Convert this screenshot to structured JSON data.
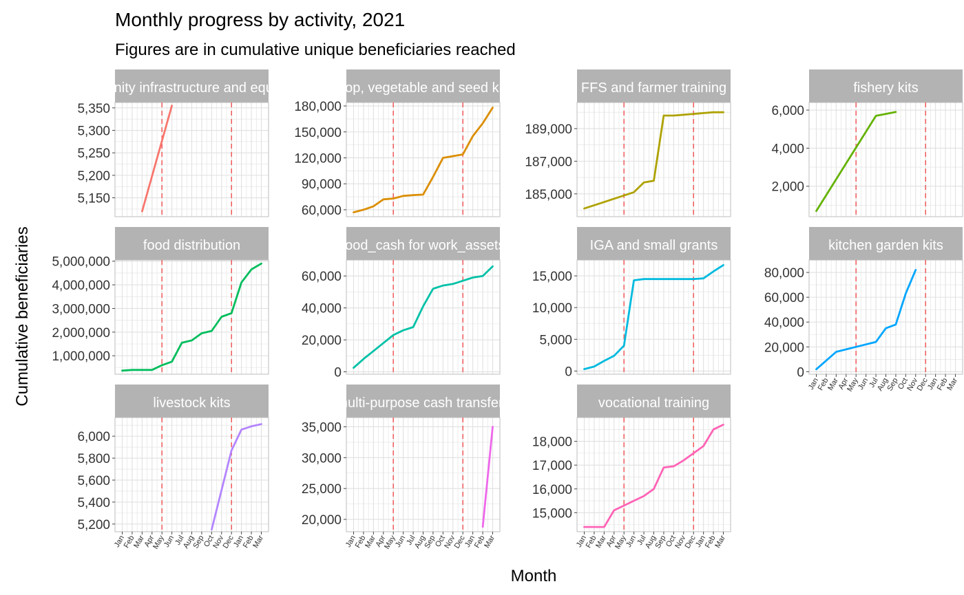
{
  "title": "Monthly progress by activity, 2021",
  "subtitle": "Figures are in cumulative unique beneficiaries reached",
  "xlabel": "Month",
  "ylabel": "Cumulative beneficiaries",
  "colors": {
    "strip_bg": "#b3b3b3",
    "strip_text": "#ffffff",
    "grid": "#e0e0e0",
    "panel_border": "#bdbdbd",
    "vline": "#f06060",
    "axis_text": "#333333"
  },
  "chart_data": {
    "type": "line",
    "x_categories": [
      "Jan",
      "Feb",
      "Mar",
      "Apr",
      "May",
      "Jun",
      "Jul",
      "Aug",
      "Sep",
      "Oct",
      "Nov",
      "Dec",
      "Jan",
      "Feb",
      "Mar"
    ],
    "reference_lines_x": [
      "May",
      "Dec"
    ],
    "grid": true,
    "facets": [
      {
        "label": "community infrastructure and equipment",
        "color": "#F8766D",
        "yticks": [
          5150,
          5200,
          5250,
          5300,
          5350
        ],
        "ylim": [
          5108,
          5362
        ],
        "points": [
          [
            3,
            5120
          ],
          [
            6,
            5355
          ]
        ]
      },
      {
        "label": "crop, vegetable and seed kits",
        "color": "#DB8E00",
        "yticks": [
          60000,
          90000,
          120000,
          150000,
          180000
        ],
        "ylim": [
          52000,
          184000
        ],
        "points": [
          [
            1,
            57000
          ],
          [
            2,
            60000
          ],
          [
            3,
            64000
          ],
          [
            4,
            72000
          ],
          [
            5,
            73000
          ],
          [
            6,
            76000
          ],
          [
            7,
            77000
          ],
          [
            8,
            77500
          ],
          [
            9,
            98000
          ],
          [
            10,
            120000
          ],
          [
            11,
            122000
          ],
          [
            12,
            124000
          ],
          [
            13,
            145000
          ],
          [
            14,
            160000
          ],
          [
            15,
            178000
          ]
        ]
      },
      {
        "label": "FFS and farmer training",
        "color": "#AEA200",
        "yticks": [
          185000,
          187000,
          189000
        ],
        "ylim": [
          183600,
          190600
        ],
        "points": [
          [
            1,
            184100
          ],
          [
            2,
            184300
          ],
          [
            3,
            184500
          ],
          [
            4,
            184700
          ],
          [
            5,
            184900
          ],
          [
            6,
            185100
          ],
          [
            7,
            185700
          ],
          [
            8,
            185800
          ],
          [
            9,
            189800
          ],
          [
            10,
            189800
          ],
          [
            11,
            189850
          ],
          [
            12,
            189900
          ],
          [
            13,
            189950
          ],
          [
            14,
            190000
          ],
          [
            15,
            190000
          ]
        ]
      },
      {
        "label": "fishery kits",
        "color": "#64B200",
        "yticks": [
          2000,
          4000,
          6000
        ],
        "ylim": [
          400,
          6400
        ],
        "points": [
          [
            1,
            700
          ],
          [
            7,
            5700
          ],
          [
            8,
            5800
          ],
          [
            9,
            5900
          ]
        ]
      },
      {
        "label": "food distribution",
        "color": "#00BD5C",
        "yticks": [
          1000000,
          2000000,
          3000000,
          4000000,
          5000000
        ],
        "ylim": [
          220000,
          5050000
        ],
        "points": [
          [
            1,
            370000
          ],
          [
            2,
            400000
          ],
          [
            3,
            400000
          ],
          [
            4,
            400000
          ],
          [
            5,
            600000
          ],
          [
            6,
            750000
          ],
          [
            7,
            1550000
          ],
          [
            8,
            1650000
          ],
          [
            9,
            1950000
          ],
          [
            10,
            2050000
          ],
          [
            11,
            2650000
          ],
          [
            12,
            2800000
          ],
          [
            13,
            4100000
          ],
          [
            14,
            4650000
          ],
          [
            15,
            4900000
          ]
        ]
      },
      {
        "label": "food_cash for work_assets",
        "color": "#00C1A7",
        "yticks": [
          0,
          20000,
          40000,
          60000
        ],
        "ylim": [
          -1500,
          70000
        ],
        "points": [
          [
            1,
            2500
          ],
          [
            2,
            8000
          ],
          [
            3,
            13000
          ],
          [
            4,
            18000
          ],
          [
            5,
            23000
          ],
          [
            6,
            26000
          ],
          [
            7,
            28000
          ],
          [
            8,
            41000
          ],
          [
            9,
            52000
          ],
          [
            10,
            54000
          ],
          [
            11,
            55000
          ],
          [
            12,
            57000
          ],
          [
            13,
            59000
          ],
          [
            14,
            60000
          ],
          [
            15,
            66000
          ]
        ]
      },
      {
        "label": "IGA and small grants",
        "color": "#00BADE",
        "yticks": [
          0,
          5000,
          10000,
          15000
        ],
        "ylim": [
          -500,
          17500
        ],
        "points": [
          [
            1,
            300
          ],
          [
            2,
            700
          ],
          [
            3,
            1600
          ],
          [
            4,
            2400
          ],
          [
            5,
            4000
          ],
          [
            6,
            14300
          ],
          [
            7,
            14500
          ],
          [
            8,
            14500
          ],
          [
            9,
            14500
          ],
          [
            10,
            14500
          ],
          [
            11,
            14500
          ],
          [
            12,
            14500
          ],
          [
            13,
            14600
          ],
          [
            14,
            15700
          ],
          [
            15,
            16700
          ]
        ]
      },
      {
        "label": "kitchen garden kits",
        "color": "#00A6FF",
        "yticks": [
          0,
          20000,
          40000,
          60000,
          80000
        ],
        "ylim": [
          -2000,
          90000
        ],
        "points": [
          [
            1,
            2000
          ],
          [
            2,
            9000
          ],
          [
            3,
            16000
          ],
          [
            4,
            18000
          ],
          [
            5,
            20000
          ],
          [
            6,
            22000
          ],
          [
            7,
            24000
          ],
          [
            8,
            35000
          ],
          [
            9,
            38000
          ],
          [
            10,
            63000
          ],
          [
            11,
            82000
          ]
        ]
      },
      {
        "label": "livestock kits",
        "color": "#B385FF",
        "yticks": [
          5200,
          5400,
          5600,
          5800,
          6000
        ],
        "ylim": [
          5130,
          6170
        ],
        "points": [
          [
            10,
            5150
          ],
          [
            12,
            5870
          ],
          [
            13,
            6060
          ],
          [
            14,
            6090
          ],
          [
            15,
            6110
          ]
        ]
      },
      {
        "label": "multi-purpose cash transfers",
        "color": "#EF67EB",
        "yticks": [
          20000,
          25000,
          30000,
          35000
        ],
        "ylim": [
          18000,
          36500
        ],
        "points": [
          [
            14,
            18800
          ],
          [
            15,
            35000
          ]
        ]
      },
      {
        "label": "vocational training",
        "color": "#FF63B6",
        "yticks": [
          15000,
          16000,
          17000,
          18000
        ],
        "ylim": [
          14200,
          19000
        ],
        "points": [
          [
            1,
            14400
          ],
          [
            2,
            14400
          ],
          [
            3,
            14400
          ],
          [
            4,
            15100
          ],
          [
            5,
            15300
          ],
          [
            6,
            15500
          ],
          [
            7,
            15700
          ],
          [
            8,
            16000
          ],
          [
            9,
            16900
          ],
          [
            10,
            16950
          ],
          [
            11,
            17200
          ],
          [
            12,
            17500
          ],
          [
            13,
            17800
          ],
          [
            14,
            18500
          ],
          [
            15,
            18700
          ]
        ]
      }
    ]
  }
}
